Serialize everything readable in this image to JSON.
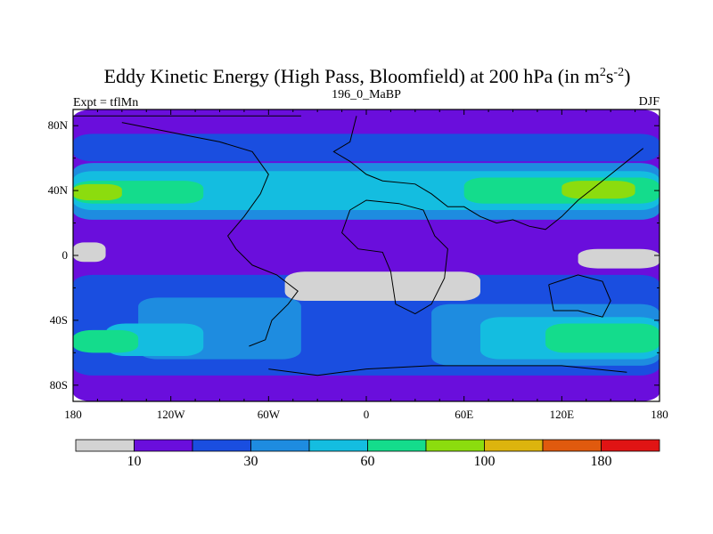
{
  "chart_data": {
    "type": "heatmap",
    "title_main": "Eddy Kinetic Energy (High Pass, Bloomfield) at 200 hPa (in m",
    "title_sup1": "2",
    "title_mid": "s",
    "title_sup2": "-2",
    "title_end": ")",
    "subtitle_left": "Expt = tflMn",
    "subtitle_center": "196_0_MaBP",
    "subtitle_right": "DJF",
    "x_ticks": [
      {
        "value": -180,
        "label": "180"
      },
      {
        "value": -120,
        "label": "120W"
      },
      {
        "value": -60,
        "label": "60W"
      },
      {
        "value": 0,
        "label": "0"
      },
      {
        "value": 60,
        "label": "60E"
      },
      {
        "value": 120,
        "label": "120E"
      },
      {
        "value": 180,
        "label": "180"
      }
    ],
    "y_ticks": [
      {
        "value": 80,
        "label": "80N"
      },
      {
        "value": 40,
        "label": "40N"
      },
      {
        "value": 0,
        "label": "0"
      },
      {
        "value": -40,
        "label": "40S"
      },
      {
        "value": -80,
        "label": "80S"
      }
    ],
    "xlim": [
      -180,
      180
    ],
    "ylim": [
      -90,
      90
    ],
    "colorbar": {
      "colors": [
        "#d3d3d3",
        "#6a0edc",
        "#1a4ee0",
        "#1e8ce0",
        "#14bde0",
        "#14dc8c",
        "#8cdc0e",
        "#dcb40e",
        "#e05a0e",
        "#e01414"
      ],
      "labels": [
        {
          "after_box": 1,
          "text": "10"
        },
        {
          "after_box": 3,
          "text": "30"
        },
        {
          "after_box": 5,
          "text": "60"
        },
        {
          "after_box": 7,
          "text": "100"
        },
        {
          "after_box": 9,
          "text": "180"
        }
      ]
    },
    "levels": [
      {
        "color": "#6a0edc",
        "bands": [
          [
            -180,
            180,
            -90,
            90
          ]
        ]
      },
      {
        "color": "#1a4ee0",
        "bands": [
          [
            -180,
            180,
            58,
            75
          ],
          [
            -180,
            180,
            -74,
            -12
          ]
        ]
      },
      {
        "color": "#1e8ce0",
        "bands": [
          [
            -180,
            180,
            22,
            57
          ],
          [
            -140,
            -40,
            -64,
            -26
          ],
          [
            40,
            180,
            -68,
            -30
          ]
        ]
      },
      {
        "color": "#14bde0",
        "bands": [
          [
            -180,
            180,
            28,
            52
          ],
          [
            -160,
            -100,
            -62,
            -42
          ],
          [
            70,
            180,
            -64,
            -38
          ]
        ]
      },
      {
        "color": "#14dc8c",
        "bands": [
          [
            -180,
            -100,
            32,
            46
          ],
          [
            60,
            180,
            32,
            48
          ],
          [
            -180,
            -140,
            -60,
            -46
          ],
          [
            110,
            180,
            -60,
            -42
          ]
        ]
      },
      {
        "color": "#8cdc0e",
        "bands": [
          [
            -180,
            -150,
            34,
            44
          ],
          [
            120,
            165,
            35,
            46
          ]
        ]
      },
      {
        "color": "#d3d3d3",
        "bands": [
          [
            -180,
            -160,
            -4,
            8
          ],
          [
            -50,
            70,
            -28,
            -10
          ],
          [
            130,
            180,
            -8,
            4
          ]
        ]
      }
    ],
    "coastlines": [
      [
        [
          -180,
          86
        ],
        [
          -40,
          86
        ]
      ],
      [
        [
          -150,
          82
        ],
        [
          -110,
          74
        ],
        [
          -90,
          70
        ],
        [
          -70,
          64
        ],
        [
          -60,
          50
        ],
        [
          -65,
          38
        ],
        [
          -75,
          24
        ],
        [
          -85,
          12
        ],
        [
          -80,
          4
        ],
        [
          -70,
          -6
        ],
        [
          -55,
          -12
        ],
        [
          -42,
          -22
        ],
        [
          -48,
          -30
        ],
        [
          -58,
          -40
        ],
        [
          -62,
          -52
        ],
        [
          -72,
          -56
        ]
      ],
      [
        [
          -6,
          86
        ],
        [
          -10,
          70
        ],
        [
          -20,
          64
        ],
        [
          -10,
          58
        ],
        [
          0,
          50
        ],
        [
          10,
          46
        ],
        [
          30,
          44
        ],
        [
          40,
          38
        ],
        [
          50,
          30
        ],
        [
          60,
          30
        ],
        [
          70,
          24
        ],
        [
          80,
          20
        ],
        [
          90,
          22
        ],
        [
          100,
          18
        ],
        [
          110,
          16
        ],
        [
          120,
          24
        ],
        [
          130,
          34
        ],
        [
          140,
          42
        ],
        [
          150,
          50
        ],
        [
          160,
          58
        ],
        [
          170,
          66
        ]
      ],
      [
        [
          -10,
          28
        ],
        [
          -15,
          14
        ],
        [
          -5,
          4
        ],
        [
          10,
          2
        ],
        [
          15,
          -10
        ],
        [
          18,
          -30
        ],
        [
          30,
          -36
        ],
        [
          40,
          -30
        ],
        [
          48,
          -14
        ],
        [
          50,
          4
        ],
        [
          42,
          12
        ],
        [
          35,
          28
        ],
        [
          20,
          32
        ],
        [
          0,
          34
        ],
        [
          -10,
          28
        ]
      ],
      [
        [
          112,
          -18
        ],
        [
          130,
          -12
        ],
        [
          145,
          -16
        ],
        [
          150,
          -28
        ],
        [
          145,
          -38
        ],
        [
          130,
          -34
        ],
        [
          115,
          -34
        ],
        [
          112,
          -18
        ]
      ],
      [
        [
          -60,
          -70
        ],
        [
          -30,
          -74
        ],
        [
          0,
          -70
        ],
        [
          40,
          -68
        ],
        [
          80,
          -68
        ],
        [
          120,
          -68
        ],
        [
          160,
          -72
        ]
      ]
    ]
  }
}
